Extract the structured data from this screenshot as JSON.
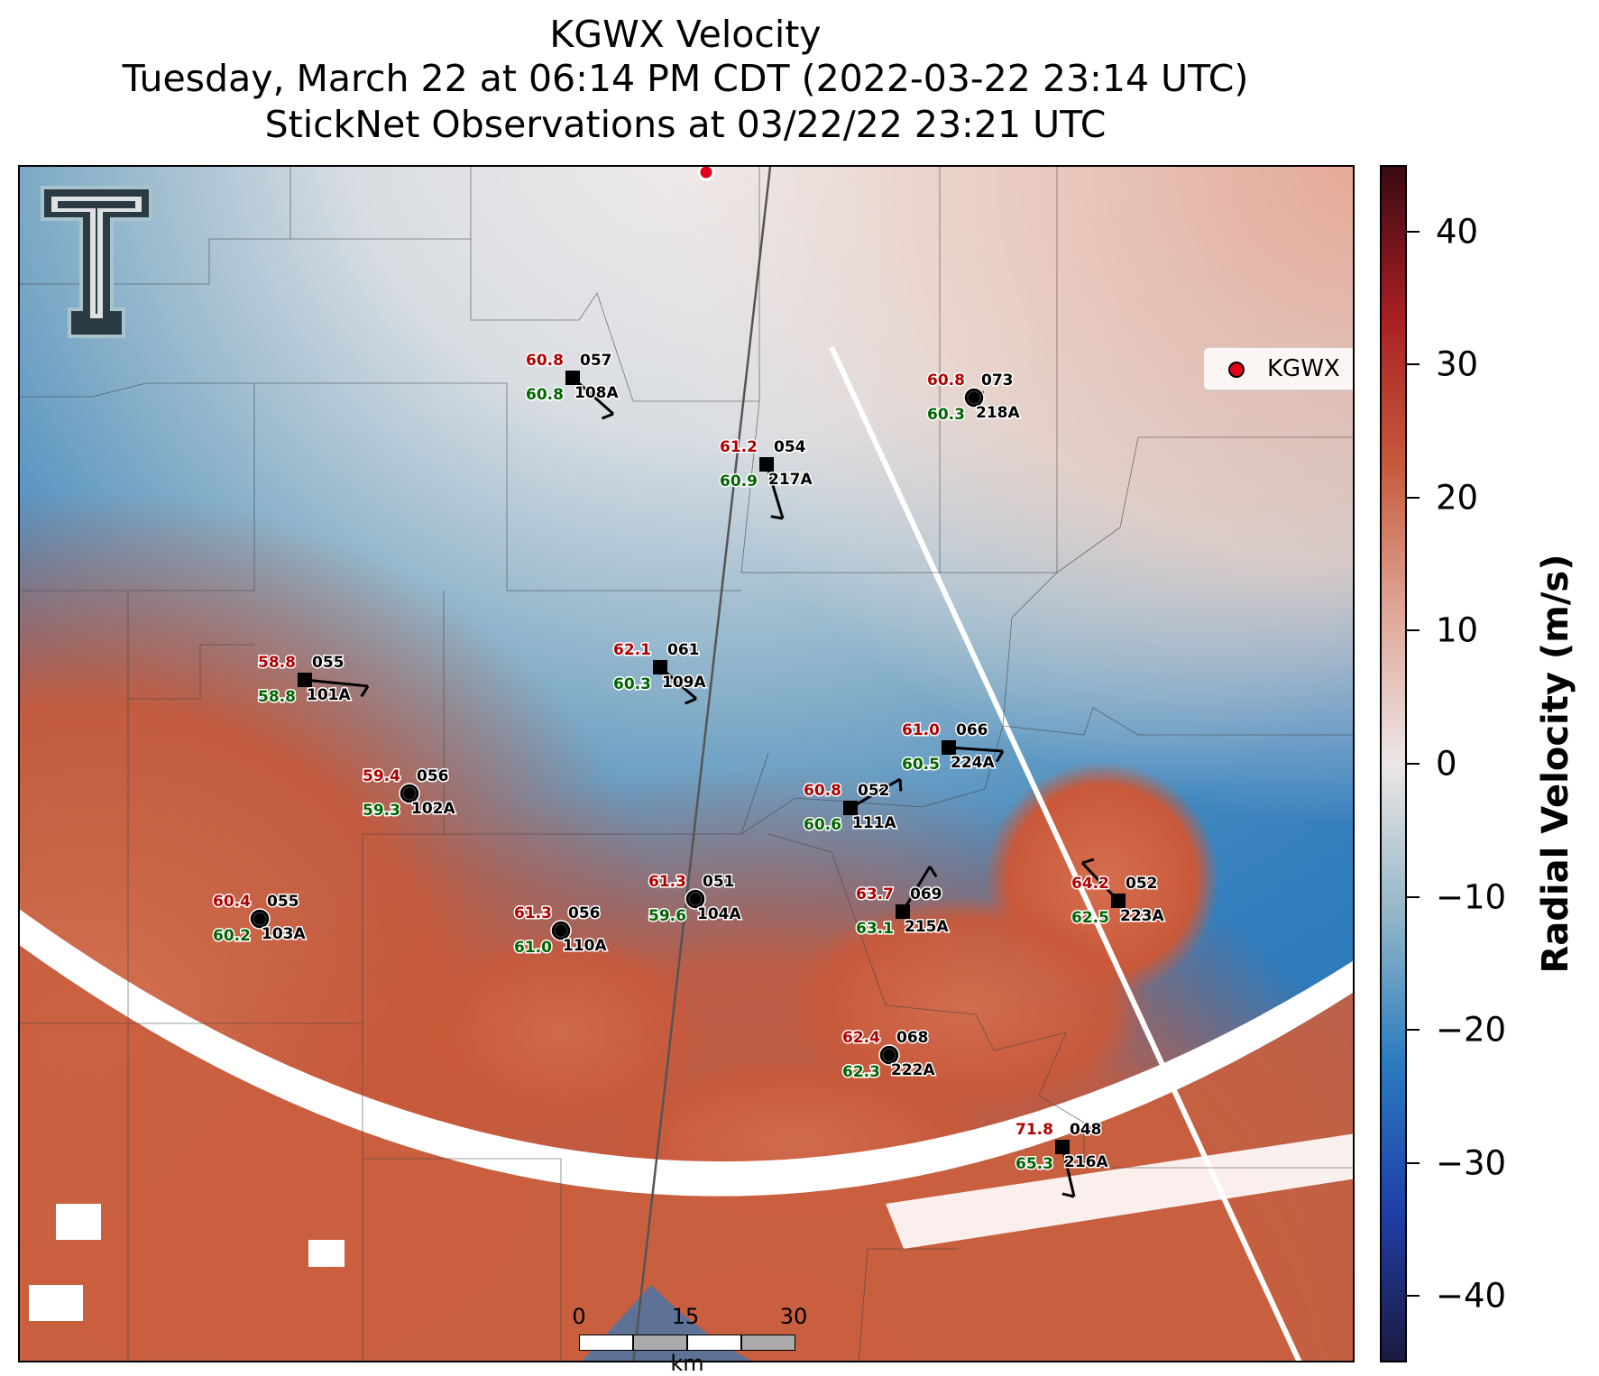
{
  "title": {
    "line1": "KGWX Velocity",
    "line2": "Tuesday, March 22 at 06:14 PM CDT (2022-03-22 23:14 UTC)",
    "line3": "StickNet Observations at 03/22/22 23:21 UTC"
  },
  "legend": {
    "label": "KGWX",
    "marker_color": "#e0001a"
  },
  "colorbar": {
    "label": "Radial Velocity (m/s)",
    "ticks": [
      "40",
      "30",
      "20",
      "10",
      "0",
      "−10",
      "−20",
      "−30",
      "−40"
    ],
    "range": [
      -45,
      45
    ],
    "colors": [
      "#1a1a40",
      "#1f3fa8",
      "#2a7bbf",
      "#93b7c8",
      "#ece6e6",
      "#e0a898",
      "#c75a3c",
      "#a81f22",
      "#3a0a12"
    ]
  },
  "scale_bar": {
    "ticks": [
      "0",
      "15",
      "30"
    ],
    "unit": "km"
  },
  "logo": {
    "name": "texas-tech-double-t-logo"
  },
  "stations": [
    {
      "id": "057",
      "temp": "60.8",
      "dew": "60.8",
      "code": "108A",
      "marker": "square"
    },
    {
      "id": "073",
      "temp": "60.8",
      "dew": "60.3",
      "code": "218A",
      "marker": "circle"
    },
    {
      "id": "054",
      "temp": "61.2",
      "dew": "60.9",
      "code": "217A",
      "marker": "square"
    },
    {
      "id": "061",
      "temp": "62.1",
      "dew": "60.3",
      "code": "109A",
      "marker": "square"
    },
    {
      "id": "055",
      "temp": "58.8",
      "dew": "58.8",
      "code": "101A",
      "marker": "square"
    },
    {
      "id": "066",
      "temp": "61.0",
      "dew": "60.5",
      "code": "224A",
      "marker": "square"
    },
    {
      "id": "056",
      "temp": "59.4",
      "dew": "59.3",
      "code": "102A",
      "marker": "circle"
    },
    {
      "id": "052",
      "temp": "60.8",
      "dew": "60.6",
      "code": "111A",
      "marker": "square"
    },
    {
      "id": "051",
      "temp": "61.3",
      "dew": "59.6",
      "code": "104A",
      "marker": "circle"
    },
    {
      "id": "069",
      "temp": "63.7",
      "dew": "63.1",
      "code": "215A",
      "marker": "square"
    },
    {
      "id": "052",
      "temp": "64.2",
      "dew": "62.5",
      "code": "223A",
      "marker": "square"
    },
    {
      "id": "055",
      "temp": "60.4",
      "dew": "60.2",
      "code": "103A",
      "marker": "circle"
    },
    {
      "id": "056",
      "temp": "61.3",
      "dew": "61.0",
      "code": "110A",
      "marker": "circle"
    },
    {
      "id": "068",
      "temp": "62.4",
      "dew": "62.3",
      "code": "222A",
      "marker": "circle"
    },
    {
      "id": "048",
      "temp": "71.8",
      "dew": "65.3",
      "code": "216A",
      "marker": "square"
    }
  ]
}
